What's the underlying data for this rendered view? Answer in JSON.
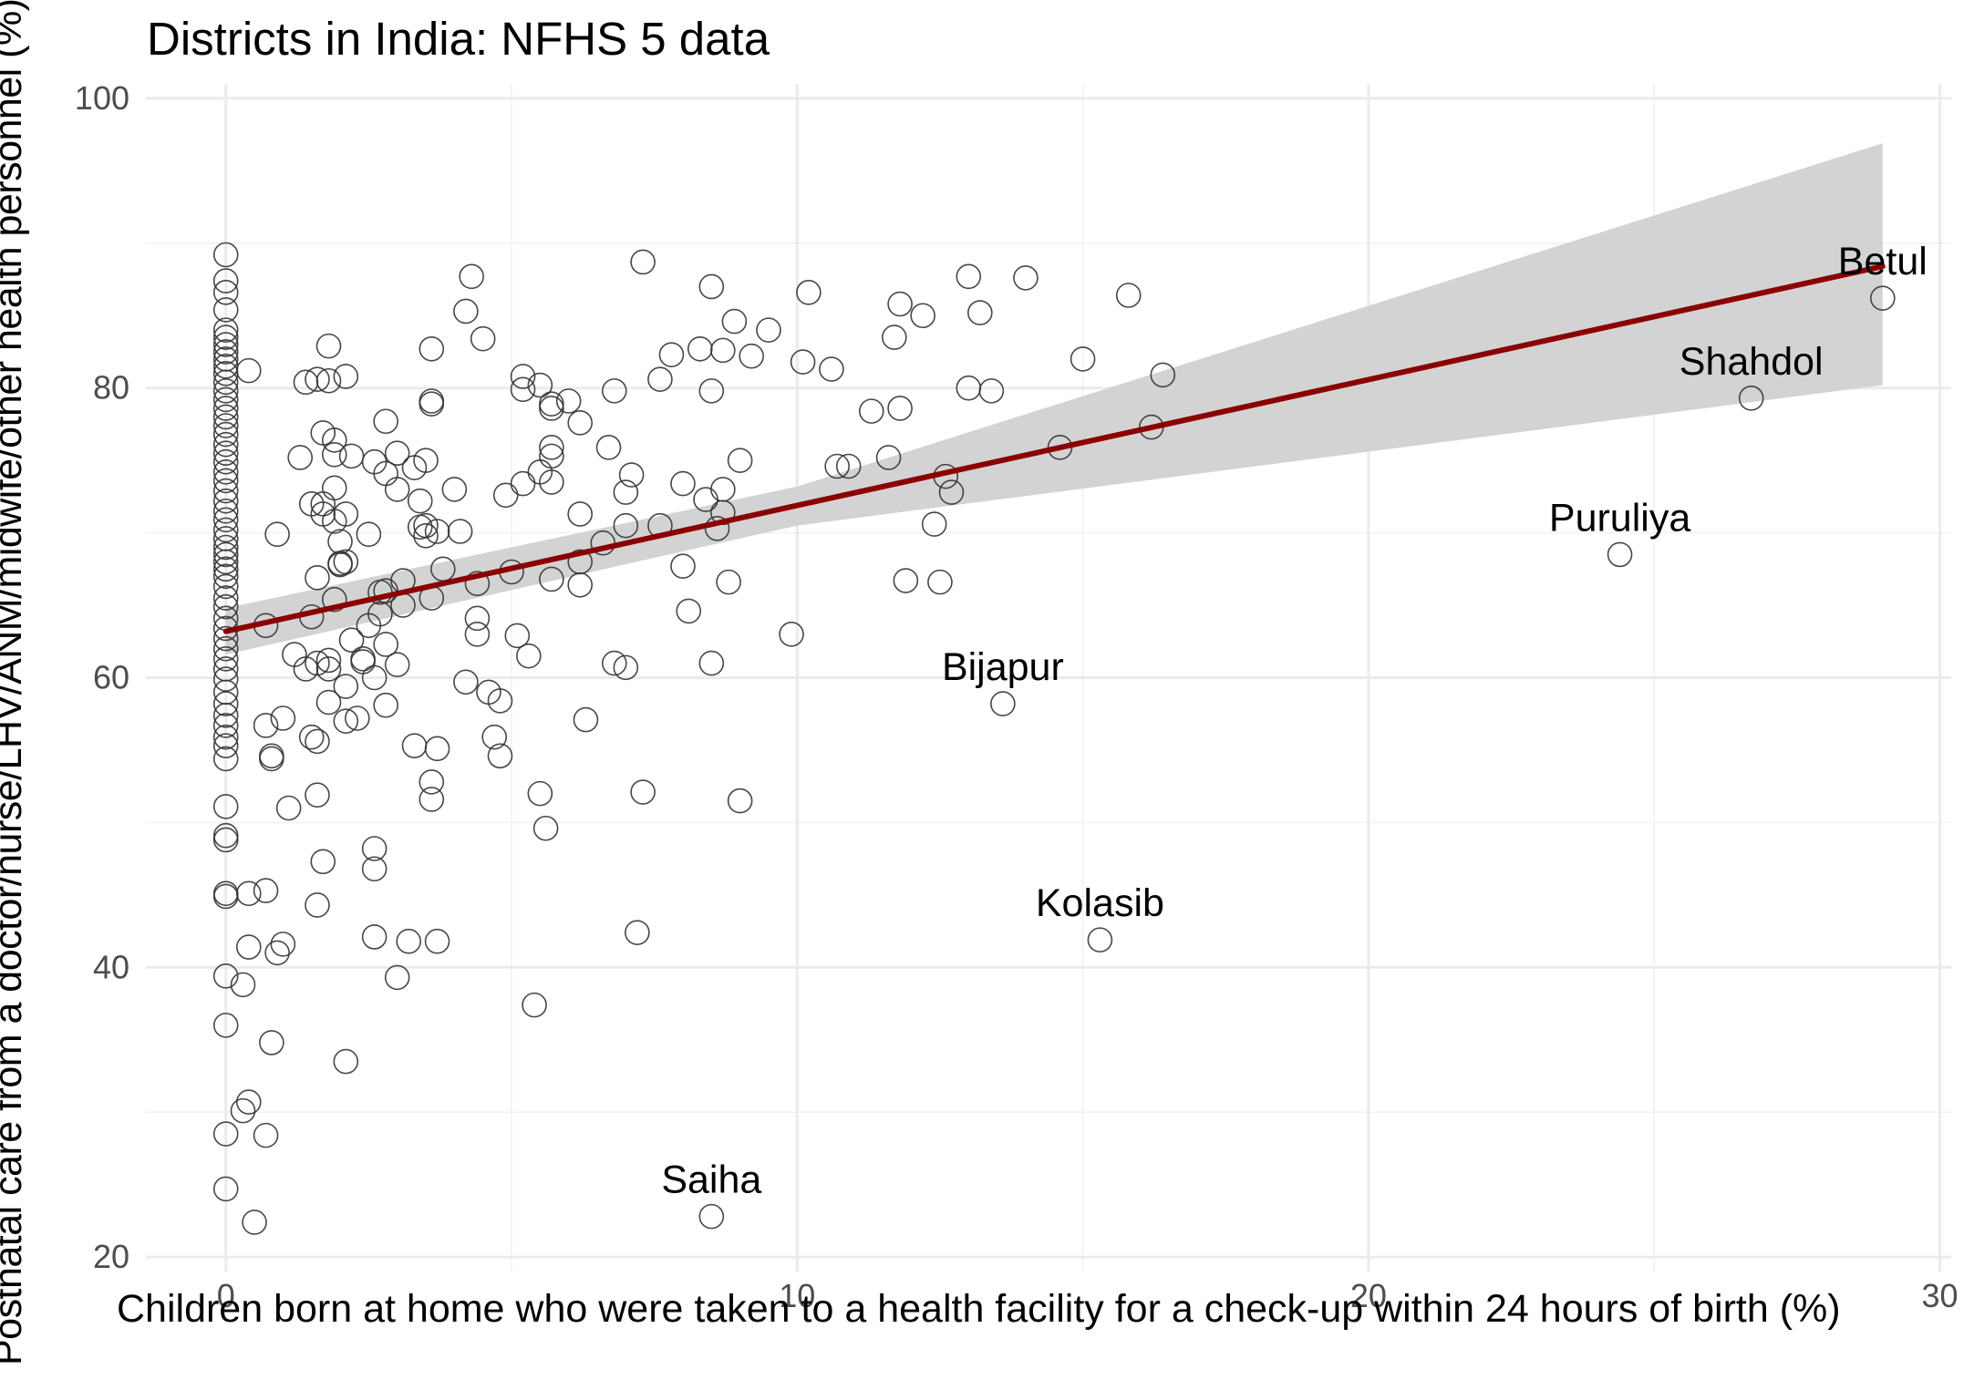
{
  "chart_data": {
    "type": "scatter",
    "title": "Districts in India: NFHS 5 data",
    "xlabel": "Children born at home who were taken to a health facility for a check-up within 24 hours of birth (%)",
    "ylabel": "Postnatal care from a doctor/nurse/LHV/ANM/midwife/other health personnel (%)",
    "xlim": [
      -1.4,
      30.2
    ],
    "ylim": [
      19.0,
      101.0
    ],
    "x_ticks": [
      0,
      10,
      20,
      30
    ],
    "y_ticks": [
      20,
      40,
      60,
      80,
      100
    ],
    "x_tick_labels": [
      "0",
      "10",
      "20",
      "30"
    ],
    "y_tick_labels": [
      "20",
      "40",
      "60",
      "80",
      "100"
    ],
    "grid": true,
    "marker": "open circle",
    "colors": {
      "trend_line": "#8B0000",
      "confidence_band": "#d3d3d3",
      "points": "#333333",
      "grid": "#ebebeb"
    },
    "trend_line": {
      "x": [
        0,
        29
      ],
      "y": [
        63.2,
        88.4
      ]
    },
    "confidence_band": {
      "x": [
        0,
        10,
        29
      ],
      "lower": [
        61.6,
        70.5,
        80.2
      ],
      "upper": [
        64.8,
        73.2,
        96.9
      ]
    },
    "labelled_points": [
      {
        "name": "Betul",
        "x": 29.0,
        "y": 86.2
      },
      {
        "name": "Shahdol",
        "x": 26.7,
        "y": 79.3
      },
      {
        "name": "Puruliya",
        "x": 24.4,
        "y": 68.5
      },
      {
        "name": "Bijapur",
        "x": 13.6,
        "y": 58.2
      },
      {
        "name": "Kolasib",
        "x": 15.3,
        "y": 41.9
      },
      {
        "name": "Saiha",
        "x": 8.5,
        "y": 22.8
      }
    ],
    "points": [
      [
        0,
        89.2
      ],
      [
        0,
        87.4
      ],
      [
        0,
        86.6
      ],
      [
        0,
        85.4
      ],
      [
        0,
        84.0
      ],
      [
        0,
        83.5
      ],
      [
        0,
        83.0
      ],
      [
        0,
        82.5
      ],
      [
        0,
        82.0
      ],
      [
        0,
        81.5
      ],
      [
        0,
        81.0
      ],
      [
        0,
        80.4
      ],
      [
        0,
        79.8
      ],
      [
        0,
        79.2
      ],
      [
        0,
        78.6
      ],
      [
        0,
        78.0
      ],
      [
        0,
        77.4
      ],
      [
        0,
        76.8
      ],
      [
        0,
        76.1
      ],
      [
        0,
        75.5
      ],
      [
        0,
        74.9
      ],
      [
        0,
        74.2
      ],
      [
        0,
        73.6
      ],
      [
        0,
        72.9
      ],
      [
        0,
        72.2
      ],
      [
        0,
        71.5
      ],
      [
        0,
        70.9
      ],
      [
        0,
        70.2
      ],
      [
        0,
        69.6
      ],
      [
        0,
        69.0
      ],
      [
        0,
        68.5
      ],
      [
        0,
        68.0
      ],
      [
        0,
        67.5
      ],
      [
        0,
        67.0
      ],
      [
        0,
        66.3
      ],
      [
        0,
        65.5
      ],
      [
        0,
        64.9
      ],
      [
        0,
        64.1
      ],
      [
        0,
        63.4
      ],
      [
        0,
        62.7
      ],
      [
        0,
        62.0
      ],
      [
        0,
        61.3
      ],
      [
        0,
        60.6
      ],
      [
        0,
        59.9
      ],
      [
        0,
        59.0
      ],
      [
        0,
        58.2
      ],
      [
        0,
        57.4
      ],
      [
        0,
        56.7
      ],
      [
        0,
        55.9
      ],
      [
        0,
        55.3
      ],
      [
        0,
        54.4
      ],
      [
        0,
        51.1
      ],
      [
        0,
        49.1
      ],
      [
        0,
        48.8
      ],
      [
        0,
        45.1
      ],
      [
        0,
        44.9
      ],
      [
        0,
        39.4
      ],
      [
        0,
        36.0
      ],
      [
        0,
        28.5
      ],
      [
        0,
        24.7
      ],
      [
        0.4,
        81.2
      ],
      [
        0.7,
        63.6
      ],
      [
        0.8,
        54.6
      ],
      [
        0.8,
        54.4
      ],
      [
        0.7,
        56.7
      ],
      [
        0.9,
        69.9
      ],
      [
        1.2,
        61.6
      ],
      [
        1.1,
        51.0
      ],
      [
        1.0,
        57.2
      ],
      [
        0.4,
        45.1
      ],
      [
        0.7,
        45.3
      ],
      [
        0.4,
        41.4
      ],
      [
        0.9,
        41.0
      ],
      [
        1.0,
        41.6
      ],
      [
        0.3,
        38.8
      ],
      [
        0.8,
        34.8
      ],
      [
        0.4,
        30.7
      ],
      [
        0.3,
        30.1
      ],
      [
        0.7,
        28.4
      ],
      [
        0.5,
        22.4
      ],
      [
        1.3,
        75.2
      ],
      [
        1.4,
        80.4
      ],
      [
        1.5,
        72.0
      ],
      [
        1.5,
        64.2
      ],
      [
        1.6,
        66.9
      ],
      [
        1.7,
        72.0
      ],
      [
        1.7,
        71.3
      ],
      [
        1.6,
        61.0
      ],
      [
        1.4,
        60.6
      ],
      [
        1.5,
        55.9
      ],
      [
        1.6,
        55.6
      ],
      [
        1.6,
        51.9
      ],
      [
        1.7,
        47.3
      ],
      [
        1.6,
        44.3
      ],
      [
        1.6,
        80.6
      ],
      [
        1.7,
        76.9
      ],
      [
        1.8,
        80.5
      ],
      [
        1.8,
        82.9
      ],
      [
        1.9,
        76.4
      ],
      [
        1.9,
        75.4
      ],
      [
        1.9,
        73.1
      ],
      [
        1.9,
        70.8
      ],
      [
        1.9,
        65.4
      ],
      [
        2.0,
        69.4
      ],
      [
        2.0,
        67.8
      ],
      [
        2.0,
        67.9
      ],
      [
        2.1,
        80.8
      ],
      [
        2.1,
        71.3
      ],
      [
        2.1,
        68.0
      ],
      [
        2.2,
        62.6
      ],
      [
        2.2,
        75.3
      ],
      [
        1.8,
        61.2
      ],
      [
        1.8,
        60.6
      ],
      [
        1.8,
        58.3
      ],
      [
        2.1,
        59.4
      ],
      [
        2.1,
        57.0
      ],
      [
        2.3,
        57.2
      ],
      [
        2.4,
        61.3
      ],
      [
        2.4,
        61.1
      ],
      [
        2.5,
        69.9
      ],
      [
        2.5,
        63.6
      ],
      [
        2.6,
        74.9
      ],
      [
        2.6,
        60.0
      ],
      [
        2.6,
        48.2
      ],
      [
        2.6,
        46.8
      ],
      [
        2.6,
        42.1
      ],
      [
        2.1,
        33.5
      ],
      [
        2.7,
        65.9
      ],
      [
        2.7,
        64.4
      ],
      [
        2.8,
        77.7
      ],
      [
        2.8,
        74.1
      ],
      [
        2.8,
        66.0
      ],
      [
        2.8,
        62.3
      ],
      [
        2.8,
        58.1
      ],
      [
        3.0,
        75.5
      ],
      [
        3.0,
        73.0
      ],
      [
        3.0,
        60.9
      ],
      [
        3.0,
        39.3
      ],
      [
        3.1,
        66.7
      ],
      [
        3.1,
        65.0
      ],
      [
        3.2,
        41.8
      ],
      [
        3.3,
        74.5
      ],
      [
        3.3,
        55.3
      ],
      [
        3.4,
        72.2
      ],
      [
        3.4,
        70.4
      ],
      [
        3.5,
        75.0
      ],
      [
        3.5,
        70.5
      ],
      [
        3.5,
        69.8
      ],
      [
        3.6,
        78.9
      ],
      [
        3.6,
        79.1
      ],
      [
        3.6,
        82.7
      ],
      [
        3.6,
        65.5
      ],
      [
        3.6,
        52.8
      ],
      [
        3.6,
        51.6
      ],
      [
        3.7,
        70.1
      ],
      [
        3.7,
        55.1
      ],
      [
        3.7,
        41.8
      ],
      [
        3.8,
        67.5
      ],
      [
        4.0,
        73.0
      ],
      [
        4.2,
        85.3
      ],
      [
        4.1,
        70.1
      ],
      [
        4.2,
        59.7
      ],
      [
        4.3,
        87.7
      ],
      [
        4.4,
        66.5
      ],
      [
        4.4,
        64.1
      ],
      [
        4.4,
        63.0
      ],
      [
        4.5,
        83.4
      ],
      [
        4.6,
        59.0
      ],
      [
        4.7,
        55.9
      ],
      [
        4.8,
        58.4
      ],
      [
        4.8,
        54.6
      ],
      [
        4.9,
        72.6
      ],
      [
        5.0,
        67.3
      ],
      [
        5.1,
        62.9
      ],
      [
        5.2,
        80.8
      ],
      [
        5.2,
        79.9
      ],
      [
        5.2,
        73.4
      ],
      [
        5.3,
        61.5
      ],
      [
        5.4,
        37.4
      ],
      [
        5.5,
        80.2
      ],
      [
        5.5,
        74.2
      ],
      [
        5.5,
        52.0
      ],
      [
        5.6,
        49.6
      ],
      [
        5.7,
        78.9
      ],
      [
        5.7,
        78.6
      ],
      [
        5.7,
        75.9
      ],
      [
        5.7,
        75.3
      ],
      [
        5.7,
        73.5
      ],
      [
        5.7,
        66.8
      ],
      [
        6.0,
        79.1
      ],
      [
        6.2,
        77.6
      ],
      [
        6.2,
        71.3
      ],
      [
        6.2,
        66.4
      ],
      [
        6.2,
        68.0
      ],
      [
        6.3,
        57.1
      ],
      [
        6.6,
        69.3
      ],
      [
        6.7,
        75.9
      ],
      [
        6.8,
        79.8
      ],
      [
        6.8,
        61.0
      ],
      [
        7.0,
        72.8
      ],
      [
        7.0,
        70.5
      ],
      [
        7.0,
        60.7
      ],
      [
        7.1,
        74.0
      ],
      [
        7.2,
        42.4
      ],
      [
        7.3,
        88.7
      ],
      [
        7.3,
        52.1
      ],
      [
        7.6,
        80.6
      ],
      [
        7.6,
        70.5
      ],
      [
        7.8,
        82.3
      ],
      [
        8.0,
        73.4
      ],
      [
        8.0,
        67.7
      ],
      [
        8.1,
        64.6
      ],
      [
        8.3,
        82.7
      ],
      [
        8.4,
        72.3
      ],
      [
        8.5,
        87.0
      ],
      [
        8.5,
        79.8
      ],
      [
        8.5,
        61.0
      ],
      [
        8.7,
        82.6
      ],
      [
        8.7,
        73.0
      ],
      [
        8.7,
        71.4
      ],
      [
        8.6,
        70.3
      ],
      [
        8.8,
        66.6
      ],
      [
        8.9,
        84.6
      ],
      [
        9.0,
        75.0
      ],
      [
        9.0,
        51.5
      ],
      [
        9.2,
        82.2
      ],
      [
        9.5,
        84.0
      ],
      [
        9.9,
        63.0
      ],
      [
        10.2,
        86.6
      ],
      [
        10.1,
        81.8
      ],
      [
        10.6,
        81.3
      ],
      [
        10.7,
        74.6
      ],
      [
        10.9,
        74.6
      ],
      [
        11.3,
        78.4
      ],
      [
        11.6,
        75.2
      ],
      [
        11.7,
        83.5
      ],
      [
        11.8,
        85.8
      ],
      [
        11.8,
        78.6
      ],
      [
        11.9,
        66.7
      ],
      [
        12.2,
        85.0
      ],
      [
        12.4,
        70.6
      ],
      [
        12.5,
        66.6
      ],
      [
        12.6,
        73.9
      ],
      [
        12.7,
        72.8
      ],
      [
        13.0,
        87.7
      ],
      [
        13.0,
        80.0
      ],
      [
        13.2,
        85.2
      ],
      [
        13.4,
        79.8
      ],
      [
        14.0,
        87.6
      ],
      [
        14.6,
        75.9
      ],
      [
        15.0,
        82.0
      ],
      [
        15.8,
        86.4
      ],
      [
        16.2,
        77.3
      ],
      [
        16.4,
        80.9
      ]
    ]
  }
}
